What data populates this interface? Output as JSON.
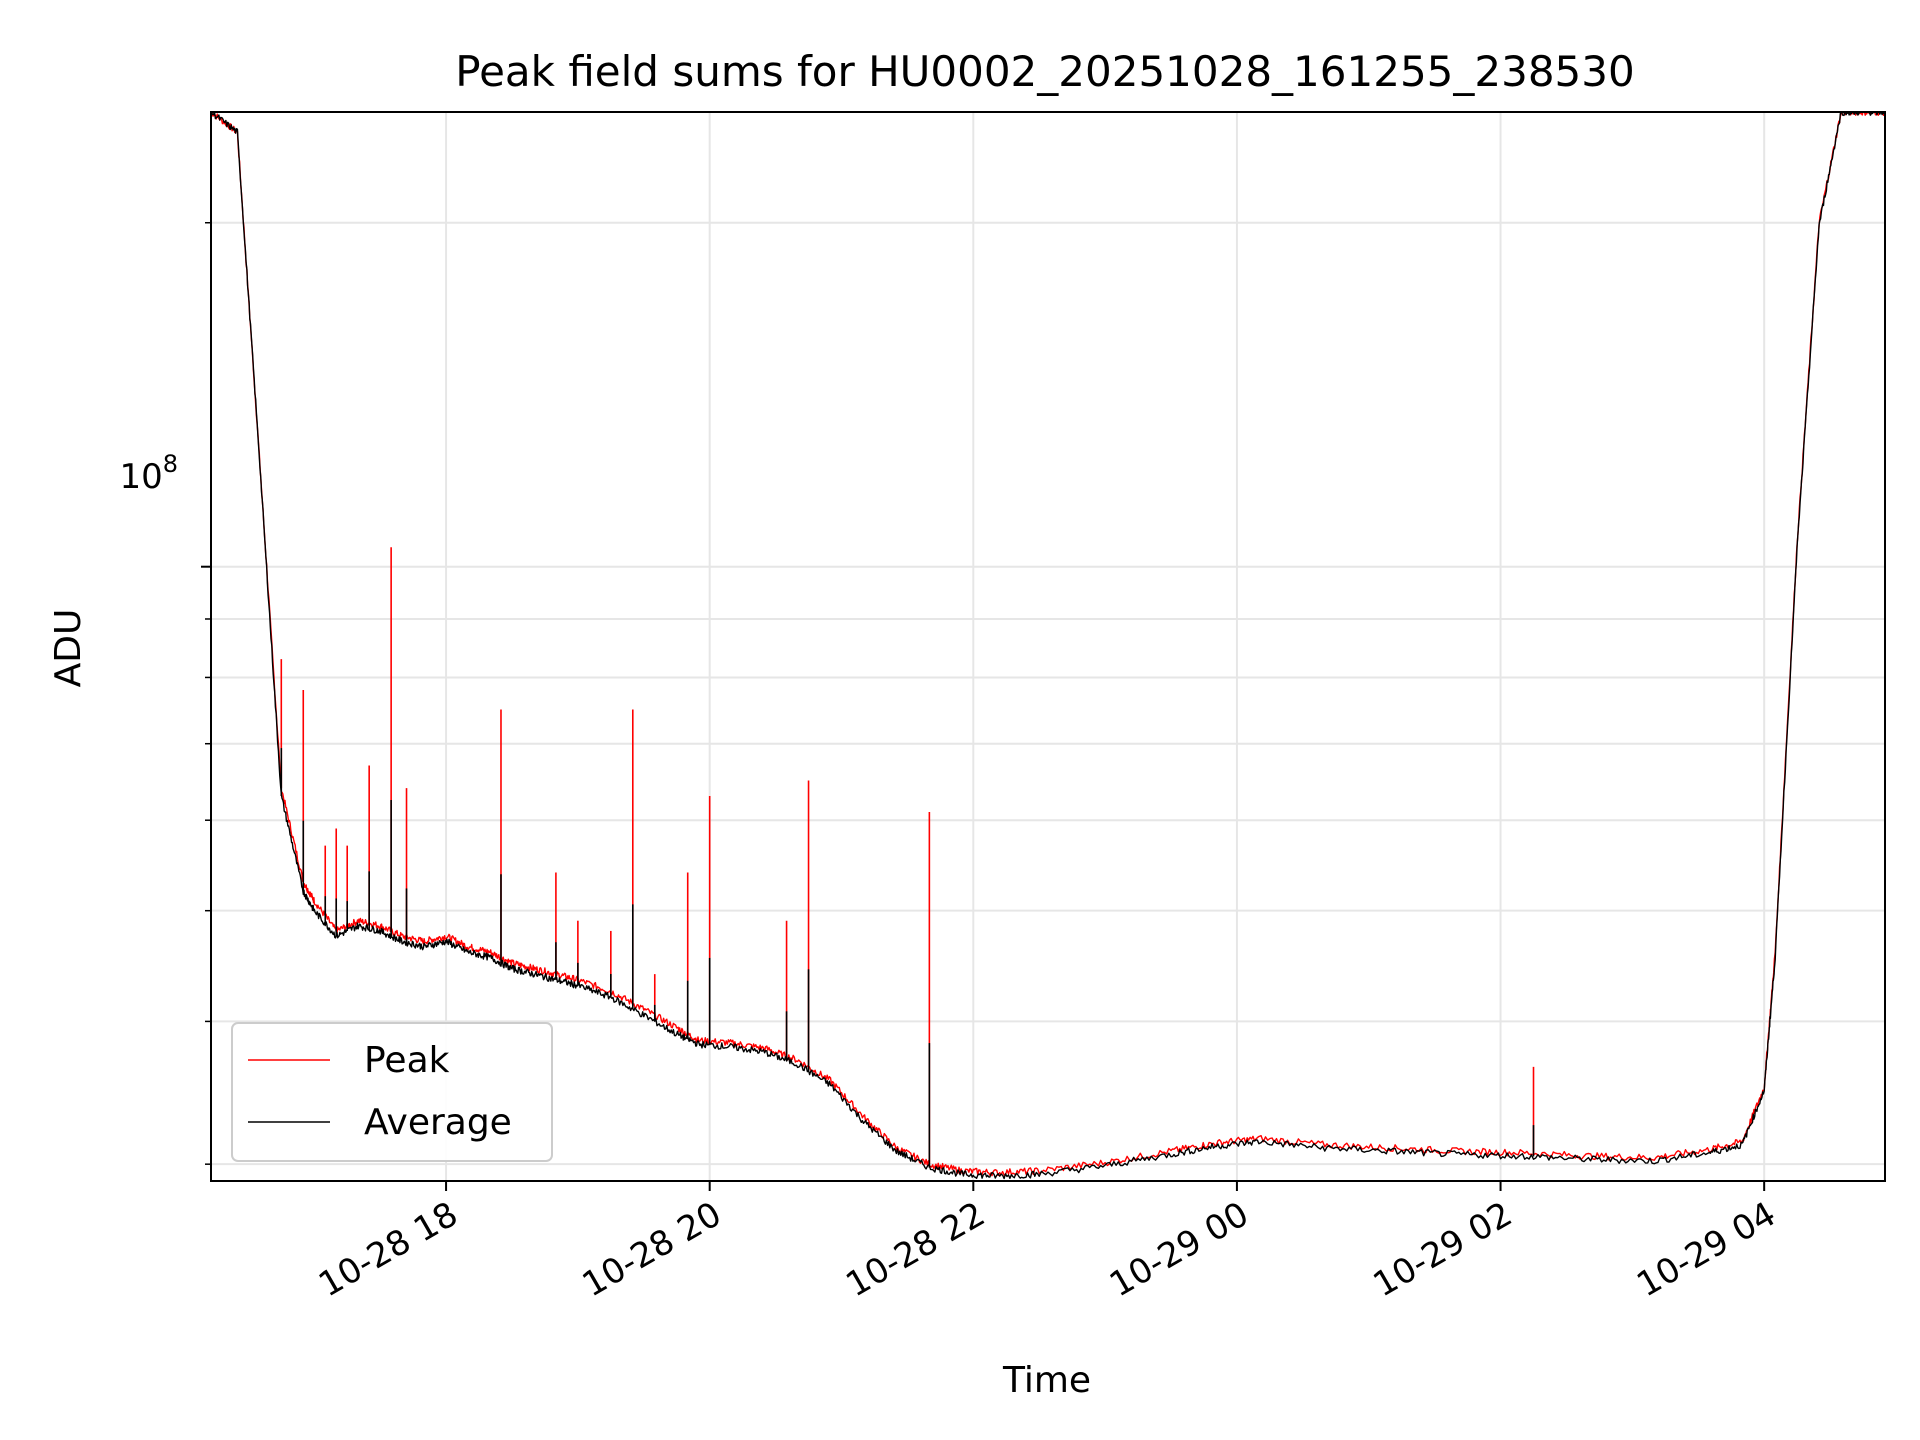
{
  "chart_data": {
    "type": "line",
    "title": "Peak field sums for HU0002_20251028_161255_238530",
    "xlabel": "Time",
    "ylabel": "ADU",
    "yscale": "log",
    "xlim": [
      "10-28 16:13",
      "10-29 04:55"
    ],
    "ylim": [
      29000000,
      250000000
    ],
    "grid": true,
    "legend": "lower-left",
    "x_ticks": [
      "10-28 18",
      "10-28 20",
      "10-28 22",
      "10-29 00",
      "10-29 02",
      "10-29 04"
    ],
    "y_major_tick_label": {
      "base": "10",
      "exponent": "8"
    },
    "series": [
      {
        "name": "Peak",
        "color": "#ff0000",
        "x": [
          "10-28 16:13",
          "10-28 16:25",
          "10-28 16:35",
          "10-28 16:45",
          "10-28 16:55",
          "10-28 17:00",
          "10-28 17:10",
          "10-28 17:20",
          "10-28 17:30",
          "10-28 17:40",
          "10-28 17:50",
          "10-28 18:00",
          "10-28 18:10",
          "10-28 18:20",
          "10-28 18:30",
          "10-28 18:40",
          "10-28 18:50",
          "10-28 19:00",
          "10-28 19:15",
          "10-28 19:30",
          "10-28 19:45",
          "10-28 19:55",
          "10-28 20:10",
          "10-28 20:25",
          "10-28 20:40",
          "10-28 20:55",
          "10-28 21:10",
          "10-28 21:25",
          "10-28 21:40",
          "10-28 21:55",
          "10-28 22:10",
          "10-28 22:30",
          "10-28 23:00",
          "10-28 23:30",
          "10-28 23:50",
          "10-29 00:10",
          "10-29 00:40",
          "10-29 01:10",
          "10-29 01:40",
          "10-29 02:10",
          "10-29 02:40",
          "10-29 03:10",
          "10-29 03:35",
          "10-29 03:50",
          "10-29 04:00",
          "10-29 04:05",
          "10-29 04:15",
          "10-29 04:25",
          "10-29 04:35",
          "10-29 04:45",
          "10-29 04:55"
        ],
        "values": [
          250000000,
          240000000,
          125000000,
          64000000,
          53000000,
          51000000,
          48000000,
          49000000,
          48500000,
          47500000,
          47000000,
          47500000,
          46500000,
          46000000,
          45000000,
          44500000,
          44000000,
          43500000,
          42500000,
          41000000,
          39500000,
          38500000,
          38300000,
          37900000,
          37000000,
          35500000,
          33000000,
          31000000,
          30000000,
          29600000,
          29500000,
          29600000,
          30100000,
          30800000,
          31300000,
          31600000,
          31200000,
          31000000,
          30800000,
          30700000,
          30500000,
          30400000,
          30900000,
          31400000,
          35000000,
          46000000,
          105000000,
          200000000,
          250000000,
          250000000,
          250000000
        ],
        "spikes": [
          {
            "x": "10-28 16:45",
            "y": 83000000
          },
          {
            "x": "10-28 16:55",
            "y": 78000000
          },
          {
            "x": "10-28 17:05",
            "y": 57000000
          },
          {
            "x": "10-28 17:10",
            "y": 59000000
          },
          {
            "x": "10-28 17:15",
            "y": 57000000
          },
          {
            "x": "10-28 17:25",
            "y": 67000000
          },
          {
            "x": "10-28 17:35",
            "y": 104000000
          },
          {
            "x": "10-28 17:42",
            "y": 64000000
          },
          {
            "x": "10-28 18:25",
            "y": 75000000
          },
          {
            "x": "10-28 18:50",
            "y": 54000000
          },
          {
            "x": "10-28 19:00",
            "y": 49000000
          },
          {
            "x": "10-28 19:15",
            "y": 48000000
          },
          {
            "x": "10-28 19:25",
            "y": 75000000
          },
          {
            "x": "10-28 19:35",
            "y": 44000000
          },
          {
            "x": "10-28 19:50",
            "y": 54000000
          },
          {
            "x": "10-28 20:00",
            "y": 63000000
          },
          {
            "x": "10-28 20:35",
            "y": 49000000
          },
          {
            "x": "10-28 20:45",
            "y": 65000000
          },
          {
            "x": "10-28 21:40",
            "y": 61000000
          },
          {
            "x": "10-29 02:15",
            "y": 36500000
          }
        ]
      },
      {
        "name": "Average",
        "color": "#000000",
        "x": [
          "10-28 16:13",
          "10-28 16:25",
          "10-28 16:35",
          "10-28 16:45",
          "10-28 16:55",
          "10-28 17:00",
          "10-28 17:10",
          "10-28 17:20",
          "10-28 17:30",
          "10-28 17:40",
          "10-28 17:50",
          "10-28 18:00",
          "10-28 18:10",
          "10-28 18:20",
          "10-28 18:30",
          "10-28 18:40",
          "10-28 18:50",
          "10-28 19:00",
          "10-28 19:15",
          "10-28 19:30",
          "10-28 19:45",
          "10-28 19:55",
          "10-28 20:10",
          "10-28 20:25",
          "10-28 20:40",
          "10-28 20:55",
          "10-28 21:10",
          "10-28 21:25",
          "10-28 21:40",
          "10-28 21:55",
          "10-28 22:10",
          "10-28 22:30",
          "10-28 23:00",
          "10-28 23:30",
          "10-28 23:50",
          "10-29 00:10",
          "10-29 00:40",
          "10-29 01:10",
          "10-29 01:40",
          "10-29 02:10",
          "10-29 02:40",
          "10-29 03:10",
          "10-29 03:35",
          "10-29 03:50",
          "10-29 04:00",
          "10-29 04:05",
          "10-29 04:15",
          "10-29 04:25",
          "10-29 04:35",
          "10-29 04:45",
          "10-29 04:55"
        ],
        "values": [
          250000000,
          240000000,
          125000000,
          63000000,
          52000000,
          50000000,
          47500000,
          48500000,
          48000000,
          47000000,
          46500000,
          47000000,
          46000000,
          45500000,
          44500000,
          44000000,
          43500000,
          43000000,
          42000000,
          40500000,
          39000000,
          38200000,
          38000000,
          37600000,
          36700000,
          35200000,
          32700000,
          30800000,
          29800000,
          29400000,
          29300000,
          29400000,
          29900000,
          30600000,
          31100000,
          31400000,
          31000000,
          30800000,
          30600000,
          30500000,
          30300000,
          30200000,
          30700000,
          31200000,
          34800000,
          45500000,
          104000000,
          199000000,
          250000000,
          250000000,
          250000000
        ]
      }
    ]
  }
}
